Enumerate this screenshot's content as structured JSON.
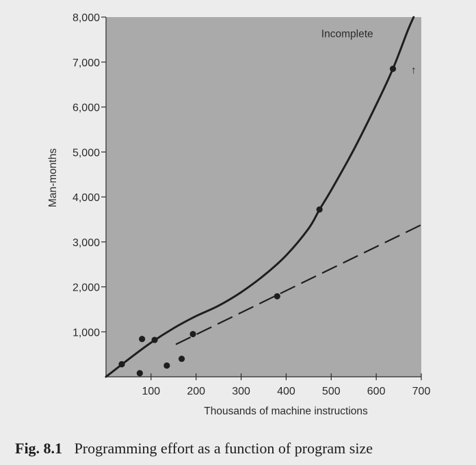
{
  "chart_data": {
    "type": "scatter",
    "title": "",
    "xlabel": "Thousands of machine instructions",
    "ylabel": "Man-months",
    "xlim": [
      0,
      700
    ],
    "ylim": [
      0,
      8000
    ],
    "x_ticks": [
      100,
      200,
      300,
      400,
      500,
      600,
      700
    ],
    "y_ticks": [
      1000,
      2000,
      3000,
      4000,
      5000,
      6000,
      7000,
      8000
    ],
    "x_tick_labels": [
      "100",
      "200",
      "300",
      "400",
      "500",
      "600",
      "700"
    ],
    "y_tick_labels": [
      "1,000",
      "2,000",
      "3,000",
      "4,000",
      "5,000",
      "6,000",
      "7,000",
      "8,000"
    ],
    "grid": false,
    "plot_background": "#aaaaaa",
    "series": [
      {
        "kind": "points",
        "color": "#1e1e1e",
        "points": [
          {
            "x": 35,
            "y": 280
          },
          {
            "x": 75,
            "y": 80
          },
          {
            "x": 80,
            "y": 840
          },
          {
            "x": 108,
            "y": 820
          },
          {
            "x": 135,
            "y": 250
          },
          {
            "x": 168,
            "y": 400
          },
          {
            "x": 193,
            "y": 950
          },
          {
            "x": 380,
            "y": 1790
          },
          {
            "x": 474,
            "y": 3720
          },
          {
            "x": 637,
            "y": 6850
          }
        ]
      },
      {
        "kind": "solid-curve",
        "color": "#1e1e1e",
        "points": [
          {
            "x": 0,
            "y": 0
          },
          {
            "x": 50,
            "y": 390
          },
          {
            "x": 100,
            "y": 760
          },
          {
            "x": 150,
            "y": 1080
          },
          {
            "x": 200,
            "y": 1350
          },
          {
            "x": 250,
            "y": 1580
          },
          {
            "x": 300,
            "y": 1880
          },
          {
            "x": 350,
            "y": 2250
          },
          {
            "x": 400,
            "y": 2700
          },
          {
            "x": 450,
            "y": 3300
          },
          {
            "x": 474,
            "y": 3720
          },
          {
            "x": 500,
            "y": 4150
          },
          {
            "x": 550,
            "y": 5050
          },
          {
            "x": 600,
            "y": 6050
          },
          {
            "x": 637,
            "y": 6850
          },
          {
            "x": 670,
            "y": 7700
          },
          {
            "x": 683,
            "y": 8000
          }
        ]
      },
      {
        "kind": "dashed-line",
        "color": "#1e1e1e",
        "points": [
          {
            "x": 155,
            "y": 720
          },
          {
            "x": 700,
            "y": 3380
          }
        ]
      }
    ],
    "annotations": [
      {
        "text": "Incomplete",
        "x": 478,
        "y": 7640
      },
      {
        "text": "↑",
        "x": 677,
        "y": 6850
      }
    ]
  },
  "caption": {
    "number": "Fig. 8.1",
    "text": "Programming effort as a function of program size"
  }
}
